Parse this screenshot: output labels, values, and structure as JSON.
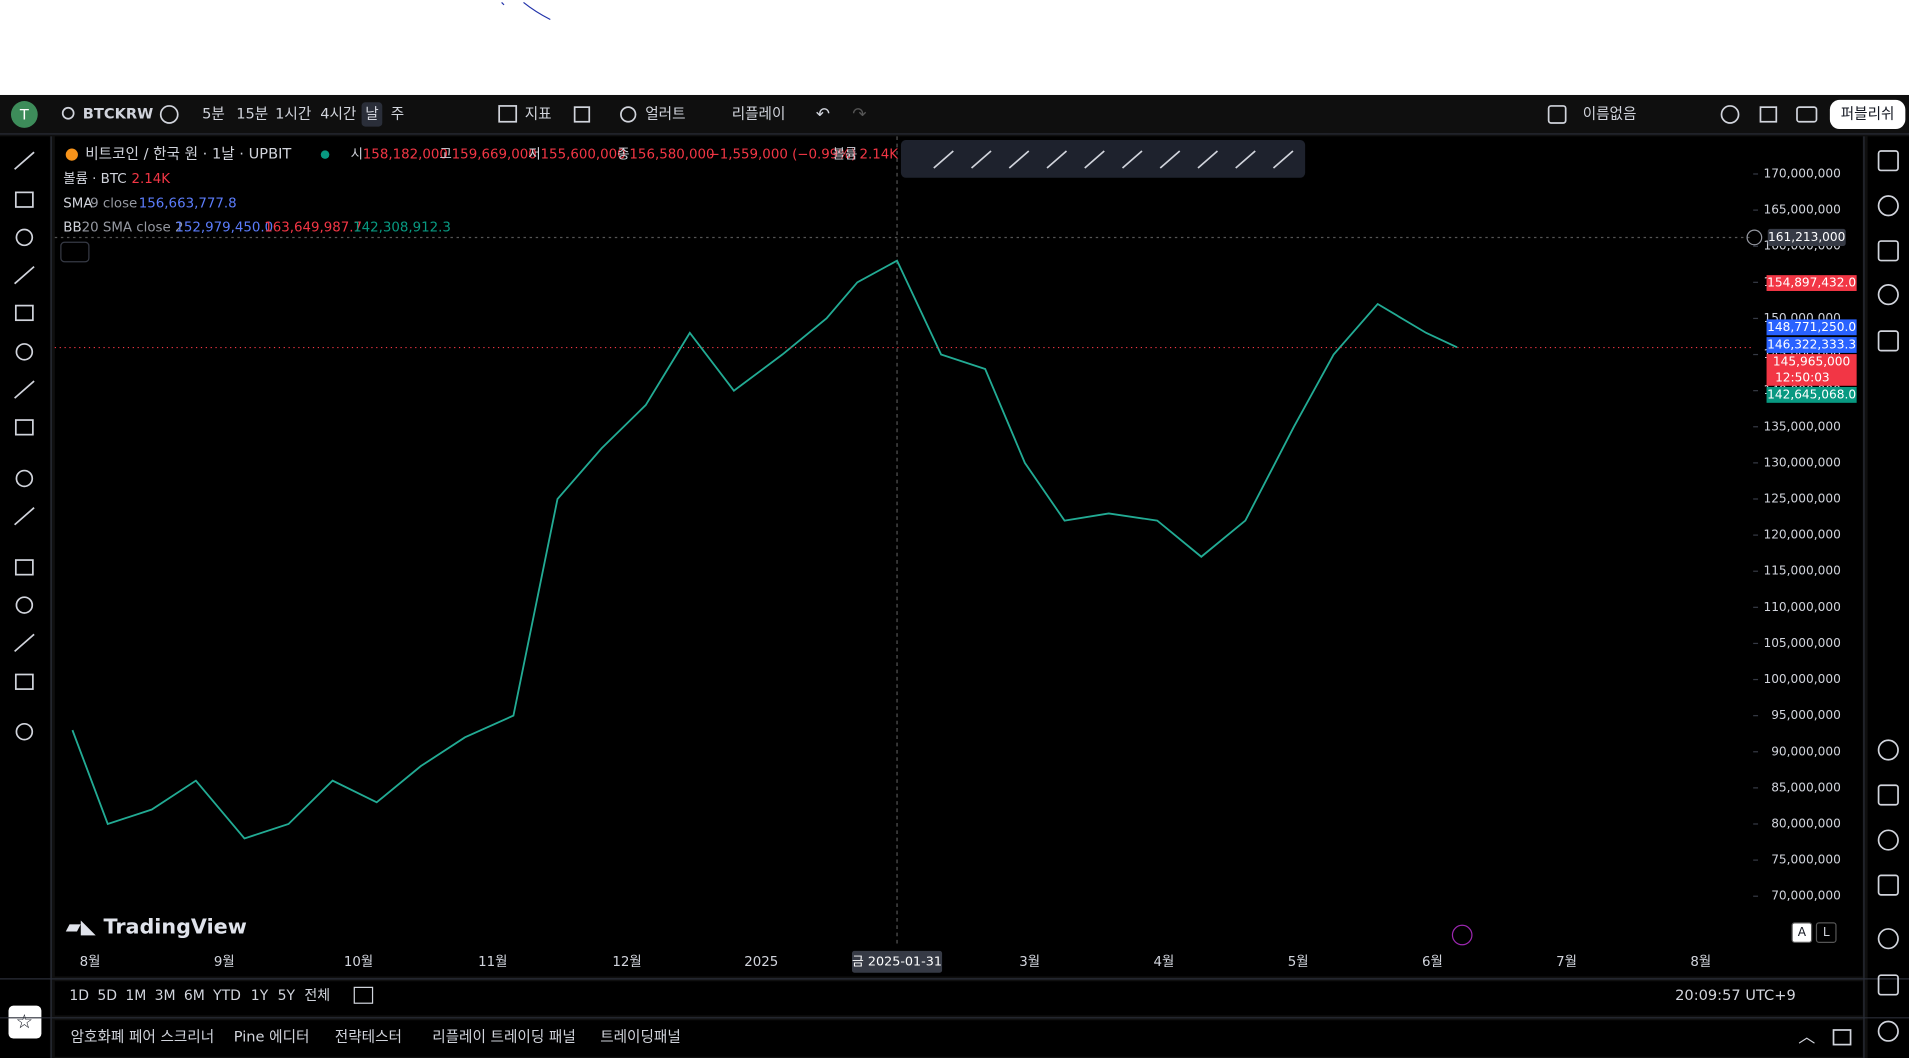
{
  "toolbar": {
    "avatar": "T",
    "symbol": "BTCKRW",
    "intervals": [
      "5분",
      "15분",
      "1시간",
      "4시간",
      "날",
      "주"
    ],
    "indicators": "지표",
    "alert": "얼러트",
    "replay": "리플레이",
    "layout_name": "이름없음",
    "publish": "퍼블리쉬"
  },
  "legend": {
    "title": "비트코인 / 한국 원 · 1날 · UPBIT",
    "ohlc": [
      {
        "label": "시",
        "value": "158,182,000"
      },
      {
        "label": "고",
        "value": "159,669,000"
      },
      {
        "label": "저",
        "value": "155,600,000"
      },
      {
        "label": "종",
        "value": "156,580,000"
      }
    ],
    "change": "−1,559,000 (−0.99%)",
    "volume_label": "볼륨",
    "volume": "2.14K",
    "volume_row": {
      "label": "볼륨 · BTC",
      "value": "2.14K"
    },
    "sma": {
      "name": "SMA",
      "params": "9 close",
      "value": "156,663,777.8"
    },
    "bb": {
      "name": "BB",
      "params": "20 SMA close 2",
      "values": [
        "152,979,450.0",
        "163,649,987.7",
        "142,308,912.3"
      ]
    }
  },
  "chart_data": {
    "type": "line",
    "color": "#22ab94",
    "x": [
      "2024-07-28",
      "2024-08-05",
      "2024-08-15",
      "2024-08-25",
      "2024-09-05",
      "2024-09-15",
      "2024-09-25",
      "2024-10-05",
      "2024-10-15",
      "2024-10-25",
      "2024-11-05",
      "2024-11-15",
      "2024-11-25",
      "2024-12-05",
      "2024-12-15",
      "2024-12-25",
      "2025-01-05",
      "2025-01-15",
      "2025-01-22",
      "2025-01-31",
      "2025-02-10",
      "2025-02-20",
      "2025-03-01",
      "2025-03-10",
      "2025-03-20",
      "2025-03-31",
      "2025-04-10",
      "2025-04-20",
      "2025-05-01",
      "2025-05-10",
      "2025-05-20",
      "2025-05-31",
      "2025-06-07"
    ],
    "values": [
      93000000,
      80000000,
      82000000,
      86000000,
      78000000,
      80000000,
      86000000,
      83000000,
      88000000,
      92000000,
      95000000,
      125000000,
      132000000,
      138000000,
      148000000,
      140000000,
      145000000,
      150000000,
      155000000,
      158000000,
      145000000,
      143000000,
      130000000,
      122000000,
      123000000,
      122000000,
      117000000,
      122000000,
      135000000,
      145000000,
      152000000,
      148000000,
      146000000
    ],
    "ylim": [
      62940000,
      175210000
    ],
    "yticks": [
      {
        "value": 70000000,
        "label": "70,000,000"
      },
      {
        "value": 75000000,
        "label": "75,000,000"
      },
      {
        "value": 80000000,
        "label": "80,000,000"
      },
      {
        "value": 85000000,
        "label": "85,000,000"
      },
      {
        "value": 90000000,
        "label": "90,000,000"
      },
      {
        "value": 95000000,
        "label": "95,000,000"
      },
      {
        "value": 100000000,
        "label": "100,000,000"
      },
      {
        "value": 105000000,
        "label": "105,000,000"
      },
      {
        "value": 110000000,
        "label": "110,000,000"
      },
      {
        "value": 115000000,
        "label": "115,000,000"
      },
      {
        "value": 120000000,
        "label": "120,000,000"
      },
      {
        "value": 125000000,
        "label": "125,000,000"
      },
      {
        "value": 130000000,
        "label": "130,000,000"
      },
      {
        "value": 135000000,
        "label": "135,000,000"
      },
      {
        "value": 140000000,
        "label": "140,000,000"
      },
      {
        "value": 145000000,
        "label": "145,000,000"
      },
      {
        "value": 150000000,
        "label": "150,000,000"
      },
      {
        "value": 155000000,
        "label": "155,000,000"
      },
      {
        "value": 160000000,
        "label": "160,000,000"
      },
      {
        "value": 165000000,
        "label": "165,000,000"
      },
      {
        "value": 170000000,
        "label": "170,000,000"
      }
    ],
    "month_labels": [
      "8월",
      "9월",
      "10월",
      "11월",
      "12월",
      "2025",
      null,
      "3월",
      "4월",
      "5월",
      "6월",
      "7월",
      "8월"
    ],
    "crosshair": {
      "x": "2025-01-31",
      "label": "금 2025-01-31",
      "y": 161213000,
      "y_label": "161,213,000"
    },
    "price_labels": [
      {
        "value": 154897432,
        "label": "154,897,432.0",
        "color": "#f23645"
      },
      {
        "value": 148771250,
        "label": "148,771,250.0",
        "color": "#2962ff"
      },
      {
        "value": 146322333.3,
        "label": "146,322,333.3",
        "color": "#2962ff"
      },
      {
        "value": 145965000,
        "label": "145,965,000",
        "color": "#f23645"
      },
      {
        "value": 142645068,
        "label": "142,645,068.0",
        "color": "#089981"
      }
    ],
    "countdown": "12:50:03"
  },
  "watermark": "TradingView",
  "scale_buttons": [
    "A",
    "L"
  ],
  "bottom_bar": {
    "ranges": [
      "1D",
      "5D",
      "1M",
      "3M",
      "6M",
      "YTD",
      "1Y",
      "5Y",
      "전체"
    ],
    "clock": "20:09:57 UTC+9"
  },
  "panel_tabs": [
    "암호화폐 페어 스크리너",
    "Pine 에디터",
    "전략테스터",
    "리플레이 트레이딩 패널",
    "트레이딩패널"
  ]
}
